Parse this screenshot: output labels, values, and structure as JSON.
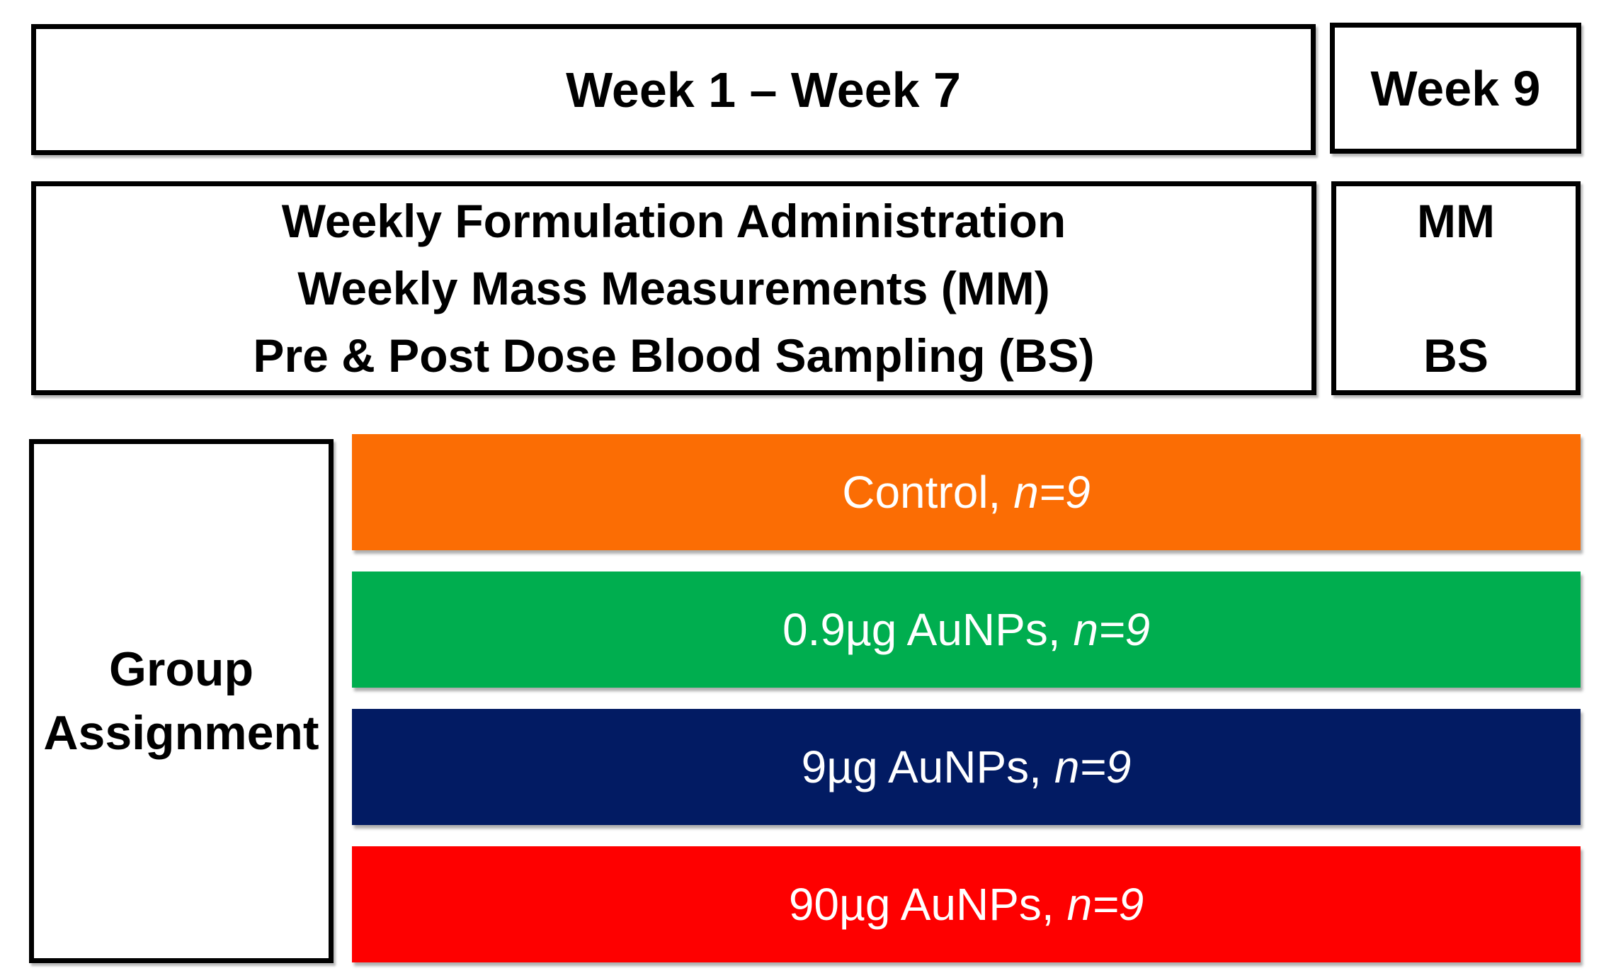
{
  "diagram": {
    "phase1": {
      "title": "Week 1 – Week 7",
      "activities": [
        "Weekly Formulation Administration",
        "Weekly Mass Measurements (MM)",
        "Pre & Post Dose Blood Sampling (BS)"
      ]
    },
    "phase2": {
      "title": "Week 9",
      "activities": [
        "MM",
        "BS"
      ]
    },
    "group_assignment": {
      "title_lines": [
        "Group",
        "Assignment"
      ],
      "groups": [
        {
          "label": "Control,",
          "n": "n=9",
          "color": "#FB6D04"
        },
        {
          "label": "0.9µg AuNPs,",
          "n": "n=9",
          "color": "#00AE4F"
        },
        {
          "label": "9µg AuNPs,",
          "n": "n=9",
          "color": "#021B63"
        },
        {
          "label": "90µg AuNPs,",
          "n": "n=9",
          "color": "#FE0000"
        }
      ]
    },
    "colors": {
      "background": "#FFFFFF",
      "box_border": "#000000",
      "box_text": "#000000",
      "bar_text": "#FFFFFF"
    }
  }
}
